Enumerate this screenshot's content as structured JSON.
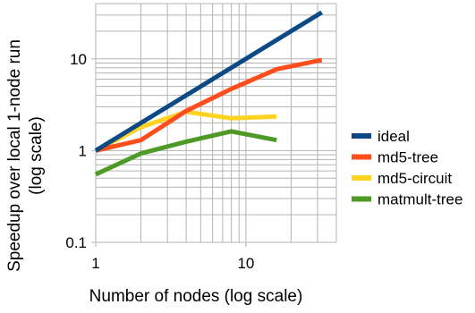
{
  "chart_data": {
    "type": "line",
    "xlabel": "Number of nodes (log scale)",
    "ylabel_lines": [
      "Speedup over local 1-node run",
      "(log scale)"
    ],
    "x_scale": "log",
    "y_scale": "log",
    "xlim": [
      1,
      40
    ],
    "ylim": [
      0.1,
      40
    ],
    "x_ticks": [
      {
        "value": 1,
        "label": "1"
      },
      {
        "value": 10,
        "label": "10"
      }
    ],
    "y_ticks": [
      {
        "value": 0.1,
        "label": "0.1"
      },
      {
        "value": 1,
        "label": "1"
      },
      {
        "value": 10,
        "label": "10"
      }
    ],
    "grid": true,
    "legend_position": "right",
    "series": [
      {
        "name": "ideal",
        "color": "#0b4a85",
        "x": [
          1,
          2,
          4,
          8,
          16,
          32
        ],
        "y": [
          1,
          2,
          4,
          8,
          16,
          32
        ]
      },
      {
        "name": "md5-tree",
        "color": "#ff4d1c",
        "x": [
          1,
          2,
          4,
          8,
          16,
          32
        ],
        "y": [
          1,
          1.3,
          2.7,
          4.7,
          7.7,
          9.7
        ]
      },
      {
        "name": "md5-circuit",
        "color": "#ffd320",
        "x": [
          1,
          2,
          4,
          8,
          16
        ],
        "y": [
          1,
          1.8,
          2.65,
          2.25,
          2.35
        ]
      },
      {
        "name": "matmult-tree",
        "color": "#4e9a26",
        "x": [
          1,
          2,
          4,
          8,
          16
        ],
        "y": [
          0.55,
          0.93,
          1.25,
          1.62,
          1.3
        ]
      }
    ]
  }
}
